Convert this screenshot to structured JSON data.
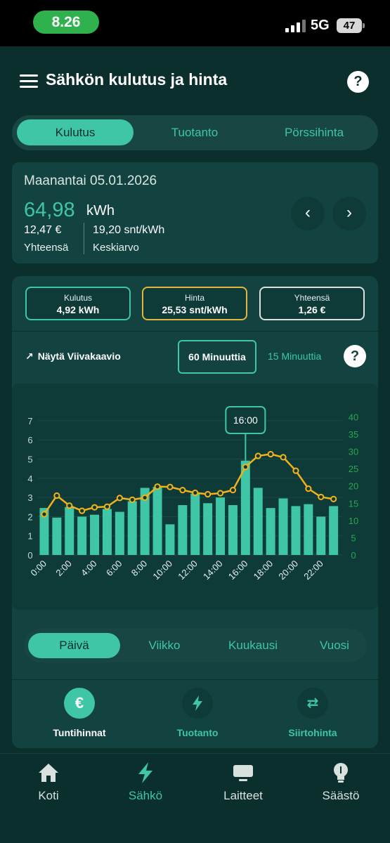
{
  "status": {
    "time": "8.26",
    "network": "5G",
    "battery": "47"
  },
  "header": {
    "title": "Sähkön kulutus ja hinta",
    "help": "?"
  },
  "tabs": [
    {
      "label": "Kulutus",
      "active": true
    },
    {
      "label": "Tuotanto",
      "active": false
    },
    {
      "label": "Pörssihinta",
      "active": false
    }
  ],
  "summary": {
    "date": "Maanantai 05.01.2026",
    "kwh_value": "64,98",
    "kwh_unit": "kWh",
    "total_value": "12,47 €",
    "total_label": "Yhteensä",
    "avg_value": "19,20 snt/kWh",
    "avg_label": "Keskiarvo",
    "prev": "‹",
    "next": "›"
  },
  "metrics": [
    {
      "label": "Kulutus",
      "value": "4,92 kWh"
    },
    {
      "label": "Hinta",
      "value": "25,53 snt/kWh"
    },
    {
      "label": "Yhteensä",
      "value": "1,26 €"
    }
  ],
  "controls": {
    "line_toggle": "Näytä Viivakaavio",
    "min60": "60 Minuuttia",
    "min15": "15 Minuuttia",
    "help": "?"
  },
  "chart_data": {
    "type": "bar",
    "tooltip": "16:00",
    "categories": [
      "0:00",
      "1:00",
      "2:00",
      "3:00",
      "4:00",
      "5:00",
      "6:00",
      "7:00",
      "8:00",
      "9:00",
      "10:00",
      "11:00",
      "12:00",
      "13:00",
      "14:00",
      "15:00",
      "16:00",
      "17:00",
      "18:00",
      "19:00",
      "20:00",
      "21:00",
      "22:00",
      "23:00"
    ],
    "x_tick_labels": [
      "0:00",
      "2:00",
      "4:00",
      "6:00",
      "8:00",
      "10:00",
      "12:00",
      "14:00",
      "16:00",
      "18:00",
      "20:00",
      "22:00"
    ],
    "series": [
      {
        "axis": "left",
        "type": "bar",
        "color": "#3fc6a6",
        "values": [
          2.45,
          1.95,
          2.5,
          2.0,
          2.1,
          2.4,
          2.25,
          2.8,
          3.5,
          3.55,
          1.6,
          2.6,
          3.2,
          2.7,
          3.0,
          2.6,
          4.92,
          3.5,
          2.45,
          2.95,
          2.55,
          2.65,
          2.0,
          2.55
        ]
      },
      {
        "axis": "right",
        "type": "line",
        "color": "#f2b21b",
        "values": [
          11.8,
          17.2,
          14.3,
          12.8,
          13.8,
          14.0,
          16.5,
          16.0,
          16.6,
          19.8,
          19.7,
          18.8,
          18.0,
          17.6,
          17.9,
          18.8,
          25.5,
          28.7,
          29.2,
          28.3,
          24.4,
          19.2,
          16.8,
          16.2
        ]
      }
    ],
    "y_left": {
      "ticks": [
        0,
        1,
        2,
        3,
        4,
        5,
        6,
        7
      ],
      "range": [
        0,
        7.4
      ]
    },
    "y_right": {
      "ticks": [
        0,
        5,
        10,
        15,
        20,
        25,
        30,
        35,
        40
      ],
      "range": [
        0,
        41.1
      ]
    },
    "colors": {
      "bars": "#3fc6a6",
      "line": "#f2b21b",
      "right_axis_text": "#25a84f",
      "left_axis_text": "#c3d6d2"
    }
  },
  "periods": [
    {
      "label": "Päivä",
      "active": true
    },
    {
      "label": "Viikko",
      "active": false
    },
    {
      "label": "Kuukausi",
      "active": false
    },
    {
      "label": "Vuosi",
      "active": false
    }
  ],
  "quick_links": [
    {
      "label": "Tuntihinnat",
      "icon": "€",
      "active": true
    },
    {
      "label": "Tuotanto",
      "icon": "bolt-icon",
      "active": false
    },
    {
      "label": "Siirtohinta",
      "icon": "swap-icon",
      "active": false
    }
  ],
  "bottom_nav": [
    {
      "label": "Koti",
      "icon": "home-icon",
      "active": false
    },
    {
      "label": "Sähkö",
      "icon": "bolt-icon",
      "active": true
    },
    {
      "label": "Laitteet",
      "icon": "monitor-icon",
      "active": false
    },
    {
      "label": "Säästö",
      "icon": "lightbulb-icon",
      "active": false
    }
  ]
}
